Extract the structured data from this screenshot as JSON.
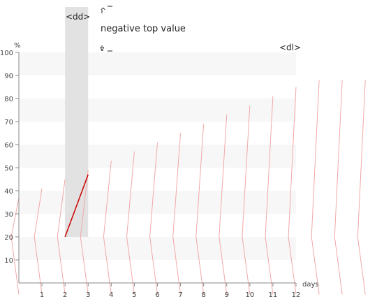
{
  "diagram": {
    "dd_tag": "<dd>",
    "dl_tag": "<dl>",
    "note": "negative top value",
    "up_mark": "^",
    "down_mark": "v"
  },
  "chart_data": {
    "type": "line",
    "xlabel": "days",
    "ylabel": "%",
    "xlim": [
      0,
      12
    ],
    "ylim": [
      0,
      100
    ],
    "x_ticks": [
      "1",
      "2",
      "3",
      "4",
      "5",
      "6",
      "7",
      "8",
      "9",
      "10",
      "11",
      "12"
    ],
    "y_ticks": [
      "10",
      "20",
      "30",
      "40",
      "50",
      "60",
      "70",
      "80",
      "90",
      "100"
    ],
    "grid": "alternating horizontal bands",
    "highlight_band": {
      "x_from": 2,
      "x_to": 3
    },
    "series": [
      {
        "x": [
          2,
          3
        ],
        "y": [
          20,
          47
        ],
        "emphasized": true
      }
    ],
    "colors": {
      "series_line": "#cc0000",
      "fan_lines": "#f2a8a8",
      "band": "#f7f7f7",
      "highlight": "#e2e2e2",
      "axis": "#888888"
    }
  }
}
